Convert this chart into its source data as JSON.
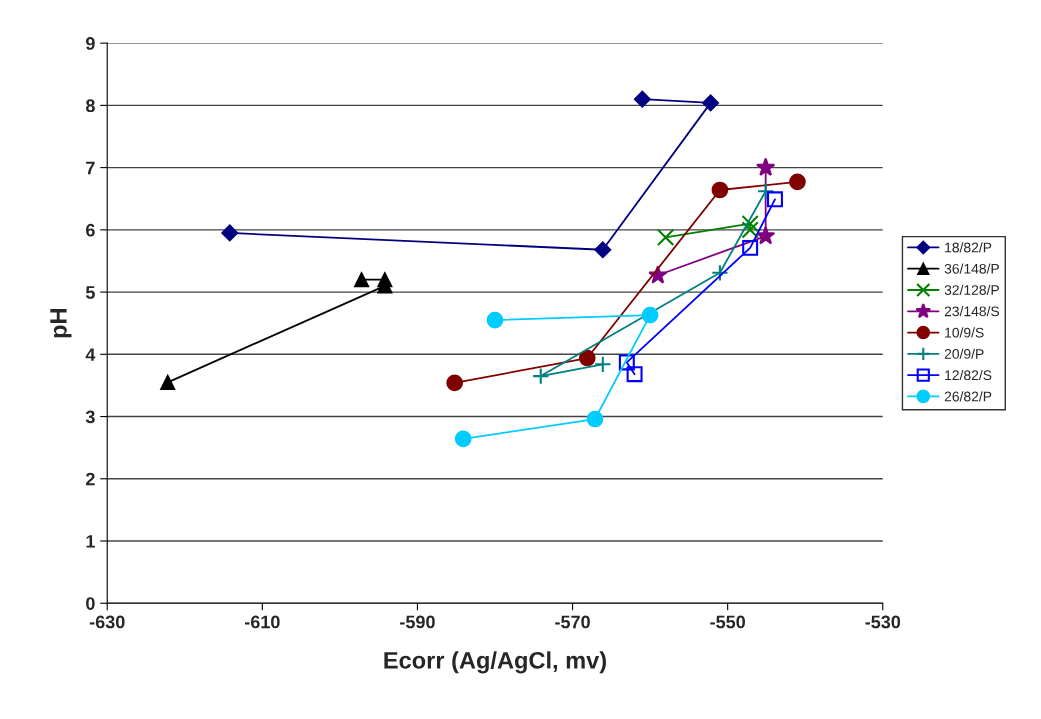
{
  "chart_data": {
    "type": "line",
    "xlabel": "Ecorr (Ag/AgCl, mv)",
    "ylabel": "pH",
    "xlim": [
      -630,
      -530
    ],
    "xticks": [
      -630,
      -610,
      -590,
      -570,
      -550,
      -530
    ],
    "ylim": [
      0,
      9
    ],
    "yticks": [
      0,
      1,
      2,
      3,
      4,
      5,
      6,
      7,
      8,
      9
    ],
    "grid": "y",
    "legend": "right",
    "line_style": "solid",
    "series": [
      {
        "name": "18/82/P",
        "color": "#000080",
        "marker": "diamond",
        "x": [
          -614.2,
          -566.1,
          -552.2,
          -561.0
        ],
        "values": [
          5.95,
          5.68,
          8.04,
          8.1
        ]
      },
      {
        "name": "36/148/P",
        "color": "#000000",
        "marker": "triangle",
        "x": [
          -622.2,
          -594.2,
          -594.2,
          -597.2
        ],
        "values": [
          3.55,
          5.1,
          5.2,
          5.2
        ]
      },
      {
        "name": "32/128/P",
        "color": "#008000",
        "marker": "cross",
        "x": [
          -558.0,
          -547.1,
          -547.1
        ],
        "values": [
          5.88,
          6.1,
          6.0
        ]
      },
      {
        "name": "23/148/S",
        "color": "#800080",
        "marker": "star",
        "x": [
          -559.0,
          -545.1,
          -545.1
        ],
        "values": [
          5.27,
          5.9,
          7.0
        ]
      },
      {
        "name": "10/9/S",
        "color": "#800000",
        "marker": "circle",
        "x": [
          -585.2,
          -568.1,
          -551.0,
          -541.0
        ],
        "values": [
          3.54,
          3.94,
          6.64,
          6.77
        ]
      },
      {
        "name": "20/9/P",
        "color": "#008080",
        "marker": "plus",
        "x": [
          -566.1,
          -574.1,
          -551.0,
          -545.1
        ],
        "values": [
          3.84,
          3.65,
          5.31,
          6.62
        ]
      },
      {
        "name": "12/82/S",
        "color": "#0000ff",
        "marker": "square",
        "x": [
          -562.0,
          -563.0,
          -547.1,
          -543.9
        ],
        "values": [
          3.68,
          3.87,
          5.71,
          6.49
        ]
      },
      {
        "name": "26/82/P",
        "color": "#00ccff",
        "marker": "circle",
        "x": [
          -584.1,
          -567.1,
          -560.0,
          -580.0
        ],
        "values": [
          2.64,
          2.96,
          4.63,
          4.55
        ]
      }
    ]
  }
}
